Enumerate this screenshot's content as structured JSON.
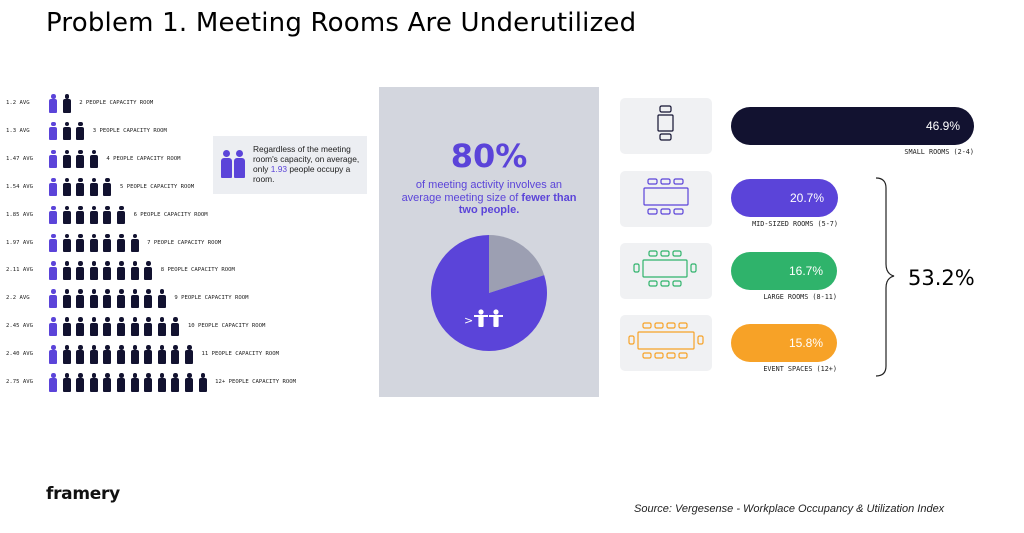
{
  "title": "Problem 1. Meeting Rooms Are Underutilized",
  "colors": {
    "accent": "#5b44d9",
    "dark": "#121230",
    "panel": "#d3d6de",
    "green": "#2fb36b",
    "orange": "#f7a227",
    "pie_gray": "#9c9fb2"
  },
  "chart_data": [
    {
      "type": "table",
      "rows": [
        {
          "avg_label": "1.2 AVG",
          "avg": 1.2,
          "capacity": 2,
          "capacity_label": "2 PEOPLE CAPACITY ROOM"
        },
        {
          "avg_label": "1.3 AVG",
          "avg": 1.3,
          "capacity": 3,
          "capacity_label": "3 PEOPLE CAPACITY ROOM"
        },
        {
          "avg_label": "1.47 AVG",
          "avg": 1.47,
          "capacity": 4,
          "capacity_label": "4 PEOPLE CAPACITY ROOM"
        },
        {
          "avg_label": "1.54 AVG",
          "avg": 1.54,
          "capacity": 5,
          "capacity_label": "5 PEOPLE CAPACITY ROOM"
        },
        {
          "avg_label": "1.85 AVG",
          "avg": 1.85,
          "capacity": 6,
          "capacity_label": "6 PEOPLE CAPACITY ROOM"
        },
        {
          "avg_label": "1.97 AVG",
          "avg": 1.97,
          "capacity": 7,
          "capacity_label": "7 PEOPLE CAPACITY ROOM"
        },
        {
          "avg_label": "2.11 AVG",
          "avg": 2.11,
          "capacity": 8,
          "capacity_label": "8 PEOPLE CAPACITY ROOM"
        },
        {
          "avg_label": "2.2 AVG",
          "avg": 2.2,
          "capacity": 9,
          "capacity_label": "9 PEOPLE CAPACITY ROOM"
        },
        {
          "avg_label": "2.45 AVG",
          "avg": 2.45,
          "capacity": 10,
          "capacity_label": "10 PEOPLE CAPACITY ROOM"
        },
        {
          "avg_label": "2.40 AVG",
          "avg": 2.4,
          "capacity": 11,
          "capacity_label": "11 PEOPLE CAPACITY ROOM"
        },
        {
          "avg_label": "2.75 AVG",
          "avg": 2.75,
          "capacity": 12,
          "capacity_label": "12+ PEOPLE CAPACITY ROOM"
        }
      ]
    },
    {
      "type": "pie",
      "headline": "80%",
      "text_pre": "of meeting activity involves an average meeting size of ",
      "text_bold": "fewer than two people.",
      "values": [
        80,
        20
      ]
    },
    {
      "type": "bar",
      "categories": [
        "SMALL ROOMS (2-4)",
        "MID-SIZED ROOMS (5-7)",
        "LARGE ROOMS (8-11)",
        "EVENT SPACES (12+)"
      ],
      "values": [
        46.9,
        20.7,
        16.7,
        15.8
      ],
      "value_labels": [
        "46.9%",
        "20.7%",
        "16.7%",
        "15.8%"
      ],
      "bracket_total": "53.2%"
    }
  ],
  "callout": {
    "text_before": "Regardless of the meeting room's capacity, on average, only ",
    "highlight": "1.93",
    "text_after": " people occupy a room."
  },
  "logo": "framery",
  "source": "Source: Vergesense - Workplace Occupancy & Utilization Index"
}
